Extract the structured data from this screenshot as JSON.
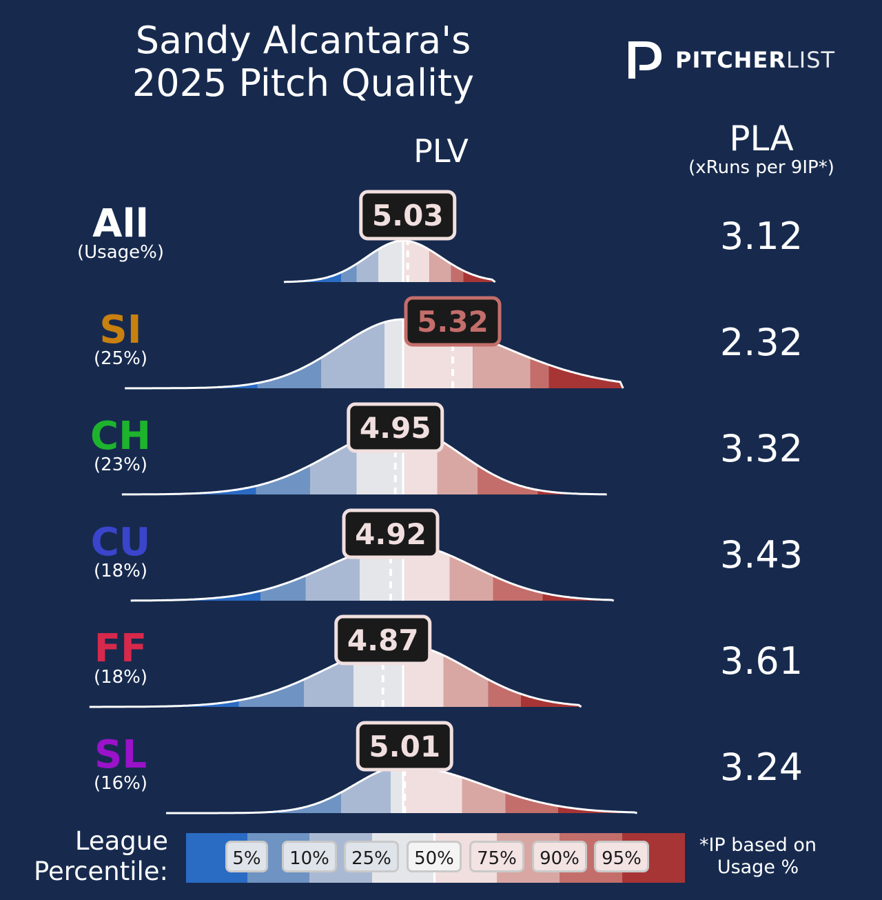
{
  "title": {
    "line1": "Sandy Alcantara's",
    "line2": "2025 Pitch Quality"
  },
  "logo": {
    "bold": "PITCHER",
    "light": "LIST"
  },
  "headers": {
    "plv": "PLV",
    "pla": "PLA",
    "pla_sub": "(xRuns per 9IP*)"
  },
  "colors": {
    "background": "#172a4e",
    "percentile_bands": [
      "#2a6bc4",
      "#6f93c2",
      "#aab9d3",
      "#e4e6ea",
      "#f1dfdf",
      "#d9a7a3",
      "#c46e6b",
      "#a83535"
    ]
  },
  "chart_data": {
    "type": "ridgeline",
    "metric": "PLV",
    "rows": [
      {
        "pitch": "All",
        "usage": "(Usage%)",
        "color": "#ffffff",
        "plv": 5.03,
        "plv_label": "5.03",
        "pla": "3.12",
        "plv_badge_band": "mid",
        "percentiles": {
          "5": 4.6,
          "10": 4.7,
          "25": 4.84,
          "50": 5.0,
          "75": 5.17,
          "90": 5.31,
          "95": 5.39
        }
      },
      {
        "pitch": "SI",
        "usage": "(25%)",
        "color": "#c8800f",
        "plv": 5.32,
        "plv_label": "5.32",
        "pla": "2.32",
        "plv_badge_band": "90",
        "percentiles": {
          "5": 4.06,
          "10": 4.47,
          "25": 4.88,
          "50": 5.0,
          "75": 5.45,
          "90": 5.82,
          "95": 5.94
        }
      },
      {
        "pitch": "CH",
        "usage": "(23%)",
        "color": "#1eb32d",
        "plv": 4.95,
        "plv_label": "4.95",
        "pla": "3.32",
        "plv_badge_band": "mid",
        "percentiles": {
          "5": 4.05,
          "10": 4.4,
          "25": 4.7,
          "50": 5.0,
          "75": 5.22,
          "90": 5.48,
          "95": 5.87
        }
      },
      {
        "pitch": "CU",
        "usage": "(18%)",
        "color": "#3a45cc",
        "plv": 4.92,
        "plv_label": "4.92",
        "pla": "3.43",
        "plv_badge_band": "mid",
        "percentiles": {
          "5": 4.08,
          "10": 4.37,
          "25": 4.72,
          "50": 5.0,
          "75": 5.3,
          "90": 5.58,
          "95": 5.9
        }
      },
      {
        "pitch": "FF",
        "usage": "(18%)",
        "color": "#d6294b",
        "plv": 4.87,
        "plv_label": "4.87",
        "pla": "3.61",
        "plv_badge_band": "mid",
        "percentiles": {
          "5": 3.94,
          "10": 4.36,
          "25": 4.68,
          "50": 5.0,
          "75": 5.26,
          "90": 5.55,
          "95": 5.76
        }
      },
      {
        "pitch": "SL",
        "usage": "(16%)",
        "color": "#9a12c9",
        "plv": 5.01,
        "plv_label": "5.01",
        "pla": "3.24",
        "plv_badge_band": "mid",
        "percentiles": {
          "5": 4.2,
          "10": 4.6,
          "25": 4.92,
          "50": 5.0,
          "75": 5.38,
          "90": 5.66,
          "95": 6.0
        }
      }
    ]
  },
  "legend": {
    "label_line1": "League",
    "label_line2": "Percentile:",
    "percentiles": [
      "5%",
      "10%",
      "25%",
      "50%",
      "75%",
      "90%",
      "95%"
    ],
    "note_line1": "*IP based on",
    "note_line2": "Usage %"
  }
}
